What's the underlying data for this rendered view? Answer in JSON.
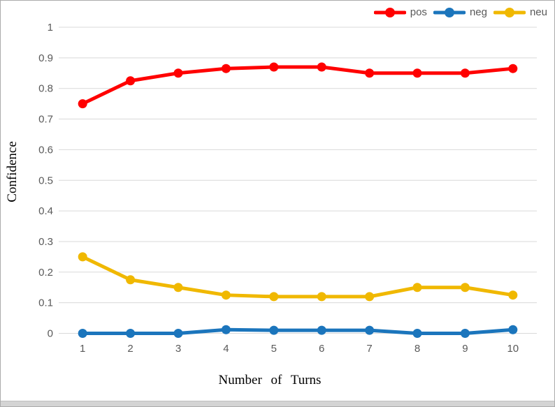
{
  "chart_data": {
    "type": "line",
    "title": "",
    "xlabel": "Number of Turns",
    "ylabel": "Confidence",
    "x": [
      1,
      2,
      3,
      4,
      5,
      6,
      7,
      8,
      9,
      10
    ],
    "xtick_labels": [
      "1",
      "2",
      "3",
      "4",
      "5",
      "6",
      "7",
      "8",
      "9",
      "10"
    ],
    "ytick_labels": [
      "0",
      "0.1",
      "0.2",
      "0.3",
      "0.4",
      "0.5",
      "0.6",
      "0.7",
      "0.8",
      "0.9",
      "1"
    ],
    "ylim": [
      0,
      1
    ],
    "grid": true,
    "legend_position": "top-right",
    "series": [
      {
        "name": "pos",
        "color": "#FF0000",
        "values": [
          0.75,
          0.825,
          0.85,
          0.865,
          0.87,
          0.87,
          0.85,
          0.85,
          0.85,
          0.865
        ]
      },
      {
        "name": "neg",
        "color": "#1B75BC",
        "values": [
          0,
          0,
          0,
          0.012,
          0.01,
          0.01,
          0.01,
          0,
          0,
          0.012
        ]
      },
      {
        "name": "neu",
        "color": "#F0B800",
        "values": [
          0.25,
          0.175,
          0.15,
          0.125,
          0.12,
          0.12,
          0.12,
          0.15,
          0.15,
          0.125
        ]
      }
    ],
    "colors": {
      "gridline": "#D9D9D9",
      "tick_text": "#595959",
      "axis_title": "#000000"
    }
  }
}
